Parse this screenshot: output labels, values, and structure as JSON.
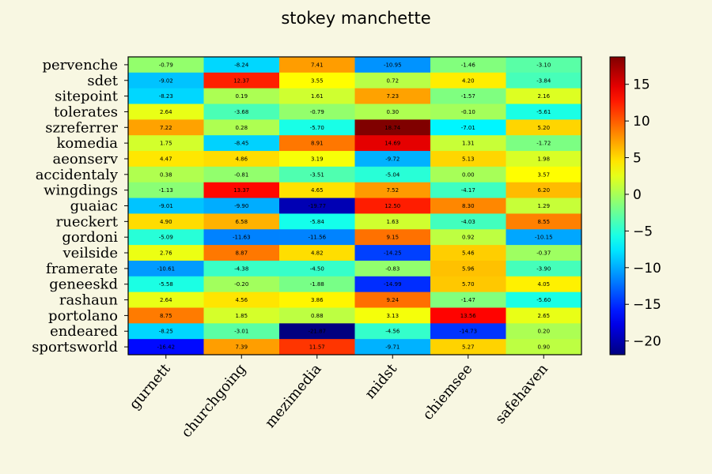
{
  "chart_data": {
    "type": "heatmap",
    "title": "stokey manchette",
    "columns": [
      "gurnett",
      "churchgoing",
      "mezimedia",
      "midst",
      "chiemsee",
      "safehaven"
    ],
    "rows": [
      "pervenche",
      "sdet",
      "sitepoint",
      "tolerates",
      "szreferrer",
      "komedia",
      "aeonserv",
      "accidentaly",
      "wingdings",
      "guaiac",
      "rueckert",
      "gordoni",
      "veilside",
      "framerate",
      "geneeskd",
      "rashaun",
      "portolano",
      "endeared",
      "sportsworld"
    ],
    "values": [
      [
        -0.79,
        -8.24,
        7.41,
        -10.95,
        -1.46,
        -3.1
      ],
      [
        -9.02,
        12.37,
        3.55,
        0.72,
        4.2,
        -3.84
      ],
      [
        -8.23,
        0.19,
        1.61,
        7.23,
        -1.57,
        2.16
      ],
      [
        2.64,
        -3.68,
        -0.79,
        0.3,
        -0.1,
        -5.61
      ],
      [
        7.22,
        0.28,
        -5.7,
        18.74,
        -7.01,
        5.2
      ],
      [
        1.75,
        -8.45,
        8.91,
        14.69,
        1.31,
        -1.72
      ],
      [
        4.47,
        4.86,
        3.19,
        -9.72,
        5.13,
        1.98
      ],
      [
        0.38,
        -0.81,
        -3.51,
        -5.04,
        0.0,
        3.57
      ],
      [
        -1.13,
        13.37,
        4.65,
        7.52,
        -4.17,
        6.2
      ],
      [
        -9.01,
        -9.9,
        -19.77,
        12.5,
        8.3,
        1.29
      ],
      [
        4.9,
        6.58,
        -5.84,
        1.63,
        -4.03,
        8.55
      ],
      [
        -5.09,
        -11.63,
        -11.56,
        9.15,
        0.92,
        -10.15
      ],
      [
        2.76,
        8.87,
        4.82,
        -14.25,
        5.46,
        -0.37
      ],
      [
        -10.61,
        -4.38,
        -4.5,
        -0.83,
        5.96,
        -3.9
      ],
      [
        -5.58,
        -0.2,
        -1.88,
        -14.99,
        5.7,
        4.05
      ],
      [
        2.64,
        4.56,
        3.86,
        9.24,
        -1.47,
        -5.6
      ],
      [
        8.75,
        1.85,
        0.88,
        3.13,
        13.56,
        2.65
      ],
      [
        -8.25,
        -3.01,
        -21.87,
        -4.56,
        -14.73,
        0.2
      ],
      [
        -16.42,
        7.39,
        11.57,
        -9.71,
        5.27,
        0.9
      ]
    ],
    "colormap": "jet",
    "vmin": -21.87,
    "vmax": 18.74,
    "colorbar_ticks": [
      15,
      10,
      5,
      0,
      -5,
      -10,
      -15,
      -20
    ],
    "colorbar_tick_labels": [
      "15",
      "10",
      "5",
      "0",
      "−5",
      "−10",
      "−15",
      "−20"
    ],
    "cell_labels_shown": true,
    "value_format": "2 decimals",
    "background_color": "#f8f7e2"
  }
}
